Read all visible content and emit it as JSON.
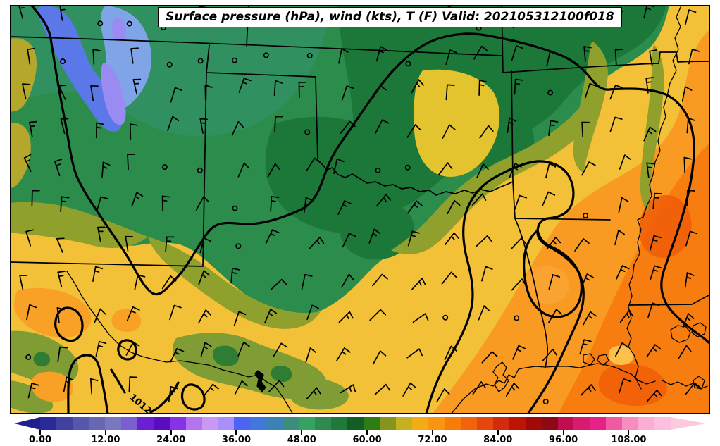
{
  "title": "Surface pressure (hPa), wind (kts), T (F) Valid: 202105312100f018",
  "contour_label": "1012",
  "colorbar": {
    "ticks": [
      "0.00",
      "12.00",
      "24.00",
      "36.00",
      "48.00",
      "60.00",
      "72.00",
      "84.00",
      "96.00",
      "108.00"
    ],
    "tick_values": [
      0,
      12,
      24,
      36,
      48,
      60,
      72,
      84,
      96,
      108
    ],
    "range": [
      0,
      117
    ],
    "left_arrow_color": "#1f1f8f",
    "right_arrow_color": "#fccade",
    "segment_colors": [
      "#2b2b97",
      "#41419f",
      "#5656aa",
      "#6868b2",
      "#7878bf",
      "#7a5fd0",
      "#6a1fd2",
      "#5a0dc0",
      "#8633e6",
      "#b573ee",
      "#c898f4",
      "#a98ffa",
      "#4d63f4",
      "#4377dd",
      "#3b82b4",
      "#3c8d7a",
      "#35a35f",
      "#2e8b4d",
      "#1e7a3a",
      "#115f27",
      "#2e7d12",
      "#85951d",
      "#c4b120",
      "#f3ac15",
      "#fb9410",
      "#f87c0a",
      "#f2640c",
      "#e54711",
      "#d52b0d",
      "#bc1505",
      "#a30909",
      "#8f0915",
      "#c00d4e",
      "#d81a70",
      "#e62187",
      "#f05aa5",
      "#f78cc1",
      "#fbaed4",
      "#fcc0de"
    ]
  },
  "map": {
    "frame_color": "#000000",
    "contour_color": "#000000",
    "border_color": "#000000",
    "field_colors": {
      "cold_blue": "#5b78e8",
      "violet": "#9a8bf2",
      "light_blue": "#7fa5e8",
      "teal_green": "#31905f",
      "green": "#2c8c4c",
      "dark_green": "#1c7838",
      "olive": "#8fa02c",
      "gold": "#f2c137",
      "orange": "#f99b22",
      "deep_orange": "#f77d10",
      "red_orange": "#f05c08"
    },
    "wind": {
      "barb_color": "#000000",
      "grid_dx": 49,
      "grid_dy": 53,
      "staff_length": 21,
      "calm_circle_radius": 3.2,
      "seed": 7
    }
  }
}
